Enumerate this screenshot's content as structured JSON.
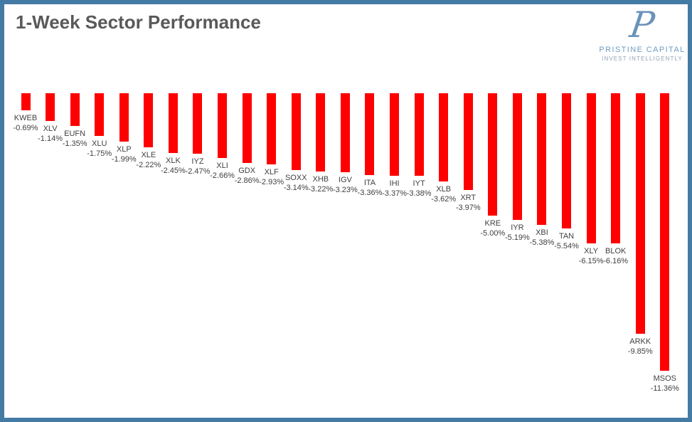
{
  "header": {
    "title": "1-Week Sector Performance"
  },
  "logo": {
    "monogram": "P",
    "name": "PRISTINE CAPITAL",
    "tagline": "INVEST INTELLIGENTLY"
  },
  "colors": {
    "bar": "#ff0000",
    "frame_border": "#447BA5",
    "title_text": "#595959",
    "label_text": "#3f3f3f",
    "logo_blue": "#6d9cc4"
  },
  "chart_data": {
    "type": "bar",
    "title": "1-Week Sector Performance",
    "orientation": "vertical-negative",
    "value_format": "percent-2dp",
    "xlabel": "",
    "ylabel": "",
    "ylim": [
      -12,
      0
    ],
    "grid": false,
    "legend": false,
    "bar_color": "#ff0000",
    "categories": [
      "KWEB",
      "XLV",
      "EUFN",
      "XLU",
      "XLP",
      "XLE",
      "XLK",
      "IYZ",
      "XLI",
      "GDX",
      "XLF",
      "SOXX",
      "XHB",
      "IGV",
      "ITA",
      "IHI",
      "IYT",
      "XLB",
      "XRT",
      "KRE",
      "IYR",
      "XBI",
      "TAN",
      "XLY",
      "BLOK",
      "ARKK",
      "MSOS"
    ],
    "values": [
      -0.69,
      -1.14,
      -1.35,
      -1.75,
      -1.99,
      -2.22,
      -2.45,
      -2.47,
      -2.66,
      -2.86,
      -2.93,
      -3.14,
      -3.22,
      -3.23,
      -3.36,
      -3.37,
      -3.38,
      -3.62,
      -3.97,
      -5.0,
      -5.19,
      -5.38,
      -5.54,
      -6.15,
      -6.16,
      -9.85,
      -11.36
    ],
    "data_labels": [
      "-0.69%",
      "-1.14%",
      "-1.35%",
      "-1.75%",
      "-1.99%",
      "-2.22%",
      "-2.45%",
      "-2.47%",
      "-2.66%",
      "-2.86%",
      "-2.93%",
      "-3.14%",
      "-3.22%",
      "-3.23%",
      "-3.36%",
      "-3.37%",
      "-3.38%",
      "-3.62%",
      "-3.97%",
      "-5.00%",
      "-5.19%",
      "-5.38%",
      "-5.54%",
      "-6.15%",
      "-6.16%",
      "-9.85%",
      "-11.36%"
    ]
  }
}
